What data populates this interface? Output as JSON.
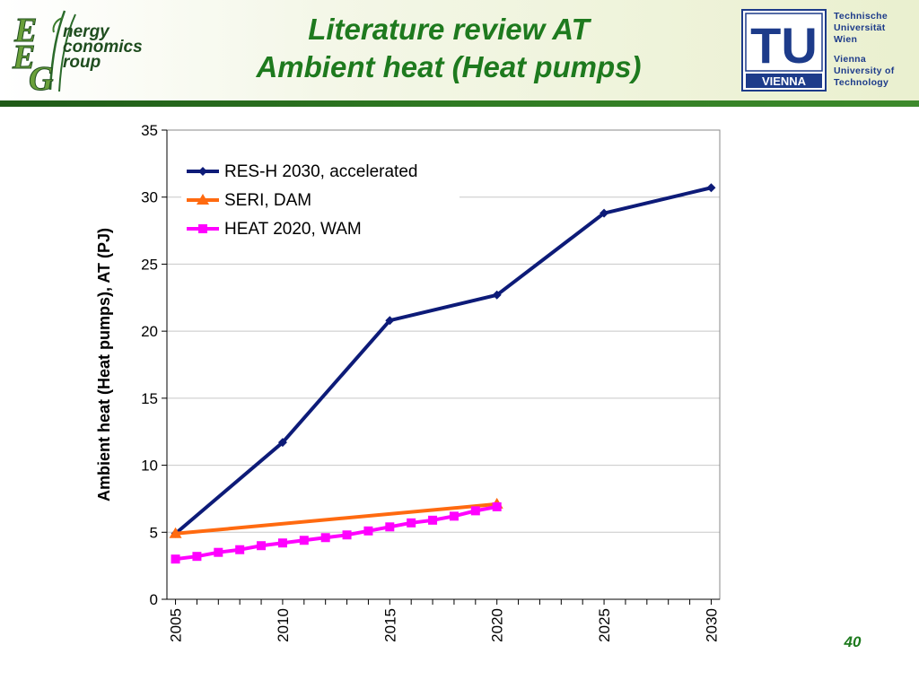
{
  "slide": {
    "title_line1": "Literature review AT",
    "title_line2": "Ambient heat (Heat pumps)",
    "page_number": "40"
  },
  "logo_left": {
    "letters": [
      "E",
      "E",
      "G"
    ],
    "words": [
      "nergy",
      "conomics",
      "roup"
    ]
  },
  "logo_right": {
    "mark": "TU",
    "mark_caption": "VIENNA",
    "lines": [
      "Technische",
      "Universität",
      "Wien",
      "Vienna",
      "University of",
      "Technology"
    ]
  },
  "colors": {
    "title": "#1e7a1e",
    "header_rule": "#2f7a22",
    "tu_blue": "#1d3b8a"
  },
  "chart_data": {
    "type": "line",
    "title": "",
    "xlabel": "",
    "ylabel": "Ambient heat (Heat pumps), AT (PJ)",
    "xlim": [
      2005,
      2030
    ],
    "ylim": [
      0,
      35
    ],
    "xticks": [
      2005,
      2010,
      2015,
      2020,
      2025,
      2030
    ],
    "yticks": [
      0,
      5,
      10,
      15,
      20,
      25,
      30,
      35
    ],
    "grid": true,
    "legend": "top-left",
    "series": [
      {
        "name": "RES-H 2030, accelerated",
        "color": "#0d1b78",
        "marker": "diamond",
        "points": [
          [
            2005,
            4.9
          ],
          [
            2010,
            11.7
          ],
          [
            2015,
            20.8
          ],
          [
            2020,
            22.7
          ],
          [
            2025,
            28.8
          ],
          [
            2030,
            30.7
          ]
        ]
      },
      {
        "name": "SERI, DAM",
        "color": "#ff6a10",
        "marker": "triangle",
        "points": [
          [
            2005,
            4.9
          ],
          [
            2020,
            7.1
          ]
        ]
      },
      {
        "name": "HEAT 2020, WAM",
        "color": "#ff00ff",
        "marker": "square",
        "points": [
          [
            2005,
            3.0
          ],
          [
            2006,
            3.2
          ],
          [
            2007,
            3.5
          ],
          [
            2008,
            3.7
          ],
          [
            2009,
            4.0
          ],
          [
            2010,
            4.2
          ],
          [
            2011,
            4.4
          ],
          [
            2012,
            4.6
          ],
          [
            2013,
            4.8
          ],
          [
            2014,
            5.1
          ],
          [
            2015,
            5.4
          ],
          [
            2016,
            5.7
          ],
          [
            2017,
            5.9
          ],
          [
            2018,
            6.2
          ],
          [
            2019,
            6.6
          ],
          [
            2020,
            6.9
          ]
        ]
      }
    ]
  }
}
